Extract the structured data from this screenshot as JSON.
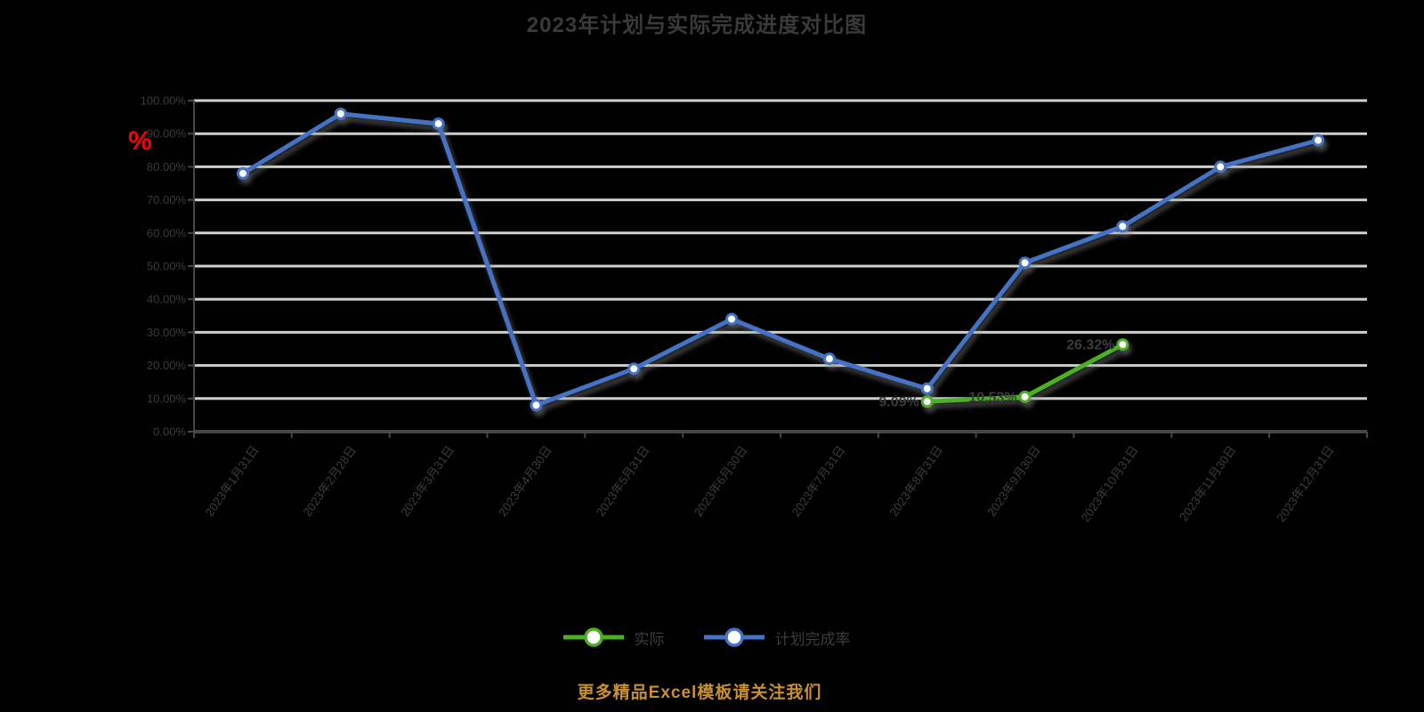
{
  "title": "2023年计划与实际完成进度对比图",
  "background_color": "#000000",
  "y_axis": {
    "title": "%",
    "title_color": "#FF0000",
    "min": 0,
    "max": 100,
    "step": 10,
    "labels": [
      "0.00%",
      "10.00%",
      "20.00%",
      "30.00%",
      "40.00%",
      "50.00%",
      "60.00%",
      "70.00%",
      "80.00%",
      "90.00%",
      "100.00%"
    ]
  },
  "x_axis": {
    "labels": [
      "2023年1月31日",
      "2023年2月28日",
      "2023年3月31日",
      "2023年4月30日",
      "2023年5月31日",
      "2023年6月30日",
      "2023年7月31日",
      "2023年8月31日",
      "2023年9月30日",
      "2023年10月31日",
      "2023年11月30日",
      "2023年12月31日"
    ]
  },
  "legend": {
    "items": [
      {
        "label": "实际",
        "color": "#4CB122"
      },
      {
        "label": "计划完成率",
        "color": "#4472C4"
      }
    ]
  },
  "watermark": {
    "text": "更多精品Excel模板请关注我们",
    "color": "#C9902E"
  },
  "colors": {
    "grid": "#CFCFCF",
    "axis": "#474747",
    "text": "#3C3C3C",
    "data_label": "#3C3C3C",
    "marker_fill": "#FFFFFF",
    "shadow": "#8A8A8A"
  },
  "chart_data": {
    "type": "line",
    "title": "2023年计划与实际完成进度对比图",
    "categories": [
      "2023年1月31日",
      "2023年2月28日",
      "2023年3月31日",
      "2023年4月30日",
      "2023年5月31日",
      "2023年6月30日",
      "2023年7月31日",
      "2023年8月31日",
      "2023年9月30日",
      "2023年10月31日",
      "2023年11月30日",
      "2023年12月31日"
    ],
    "series": [
      {
        "name": "实际",
        "color": "#4CB122",
        "values": [
          null,
          null,
          null,
          null,
          null,
          null,
          null,
          9.09,
          10.53,
          26.32,
          null,
          null
        ],
        "data_labels": [
          "",
          "",
          "",
          "",
          "",
          "",
          "",
          "9.09%",
          "10.53%",
          "26.32%",
          "",
          ""
        ]
      },
      {
        "name": "计划完成率",
        "color": "#4472C4",
        "values": [
          78,
          96,
          93,
          8,
          19,
          34,
          22,
          13,
          51,
          62,
          80,
          88
        ],
        "data_labels": []
      }
    ],
    "xlabel": "",
    "ylabel": "%",
    "ylim": [
      0,
      100
    ],
    "grid": true,
    "legend_position": "bottom"
  }
}
